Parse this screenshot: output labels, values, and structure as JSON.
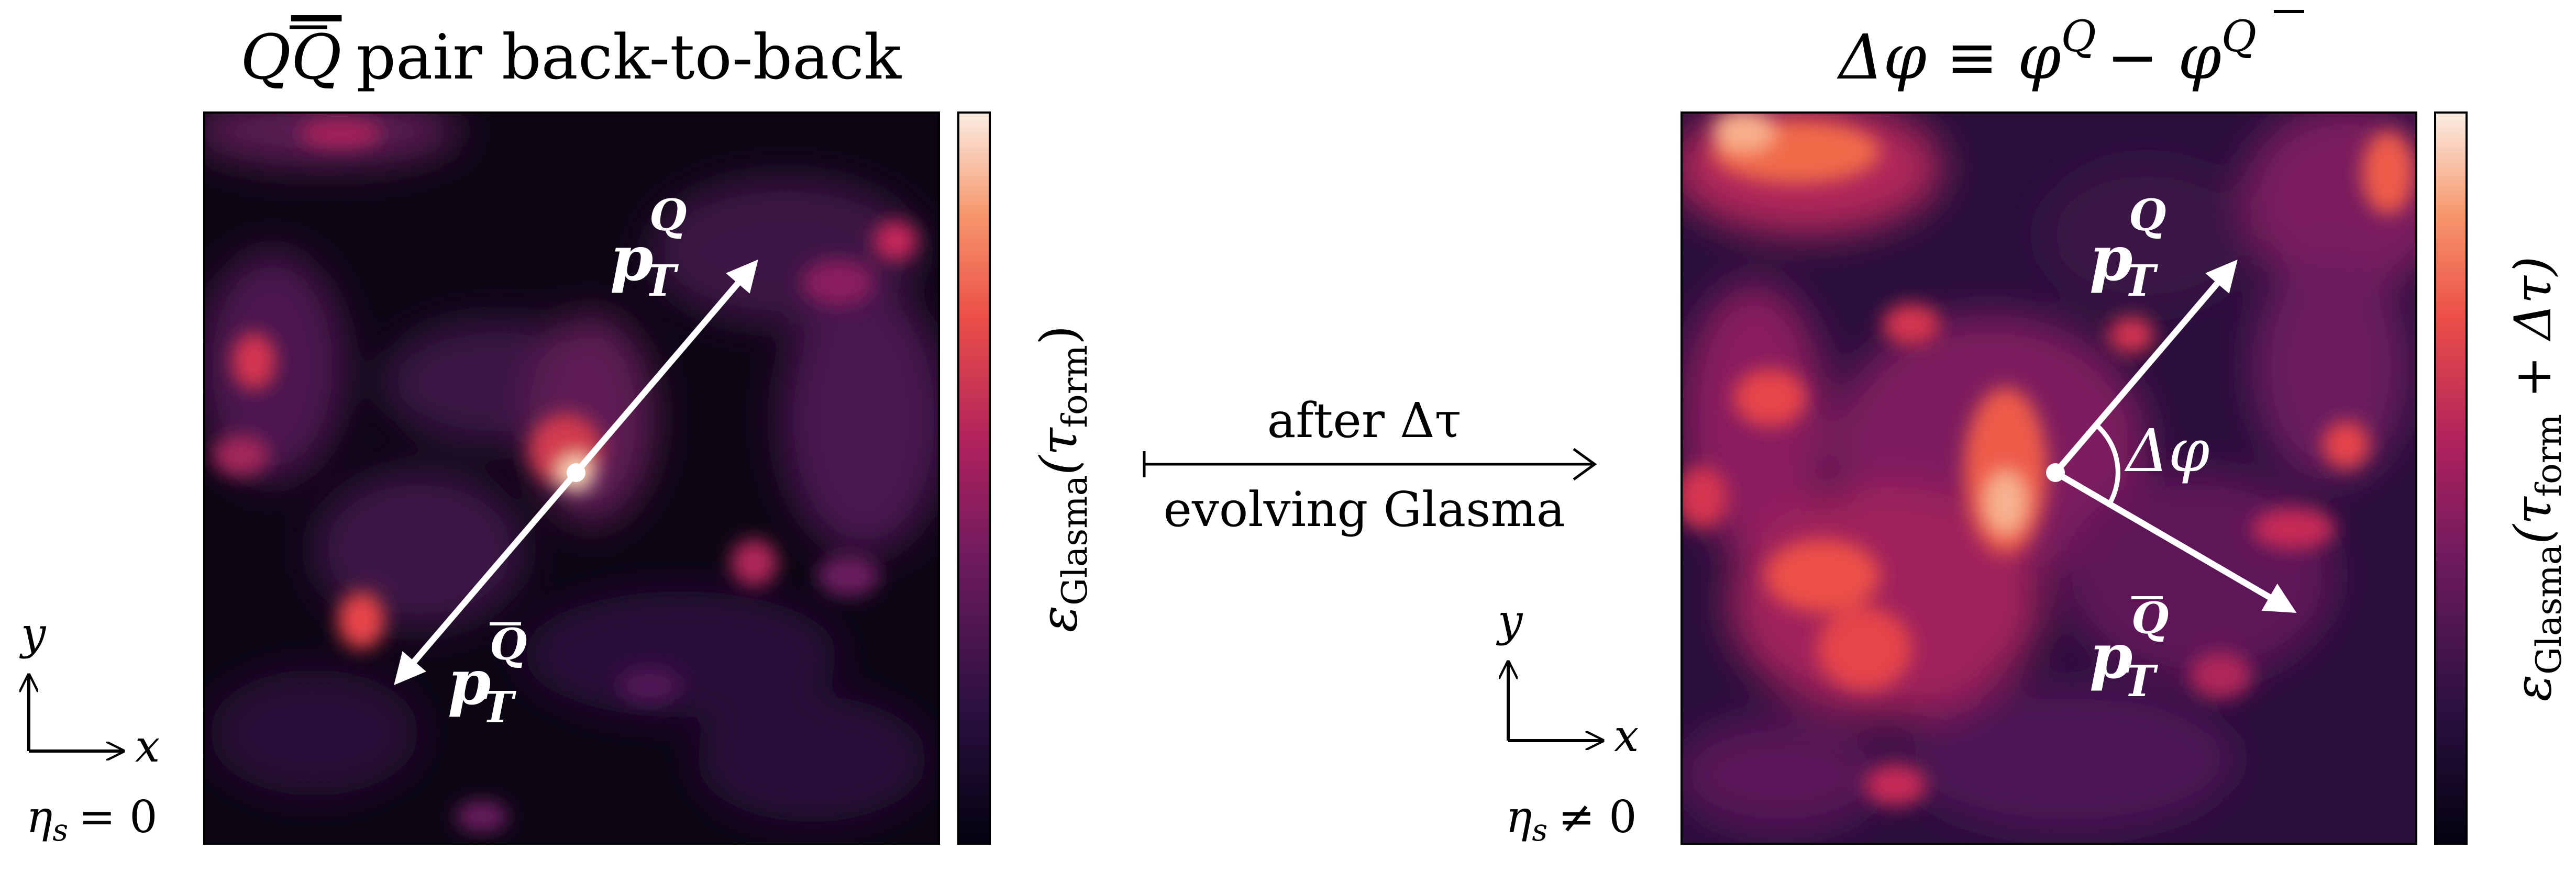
{
  "left_panel": {
    "title_q": "Q",
    "title_qbar": "Q",
    "title_rest": "pair back-to-back",
    "colorbar_label_eps": "ε",
    "colorbar_label_sub": "Glasma",
    "colorbar_label_arg": "(τ",
    "colorbar_label_arg_sub": "form",
    "colorbar_label_close": ")",
    "vec_q_main": "p",
    "vec_q_sub": "T",
    "vec_q_sup": "Q",
    "vec_qbar_main": "p",
    "vec_qbar_sub": "T",
    "vec_qbar_sup": "Q",
    "axis_y": "y",
    "axis_x": "x",
    "eta_label": "η",
    "eta_sub": "s",
    "eta_rel": "= 0"
  },
  "middle": {
    "top_text": "after Δτ",
    "bottom_text": "evolving Glasma"
  },
  "right_panel": {
    "title_delta": "Δφ ≡ φ",
    "title_sup_q": "Q",
    "title_minus": "− φ",
    "title_sup_qbar": "Q",
    "colorbar_label_eps": "ε",
    "colorbar_label_sub": "Glasma",
    "colorbar_label_arg": "(τ",
    "colorbar_label_arg_sub": "form",
    "colorbar_label_close": " + Δτ)",
    "angle_label": "Δφ",
    "vec_q_main": "p",
    "vec_q_sub": "T",
    "vec_q_sup": "Q",
    "vec_qbar_main": "p",
    "vec_qbar_sub": "T",
    "vec_qbar_sup": "Q",
    "axis_y": "y",
    "axis_x": "x",
    "eta_label": "η",
    "eta_sub": "s",
    "eta_rel": "≠ 0"
  },
  "colors": {
    "map_dark": "#0b0512",
    "map_mid": "#8a1f5f",
    "map_bright": "#f0603f",
    "map_hot": "#fbd0b0",
    "arrow": "#ffffff"
  }
}
